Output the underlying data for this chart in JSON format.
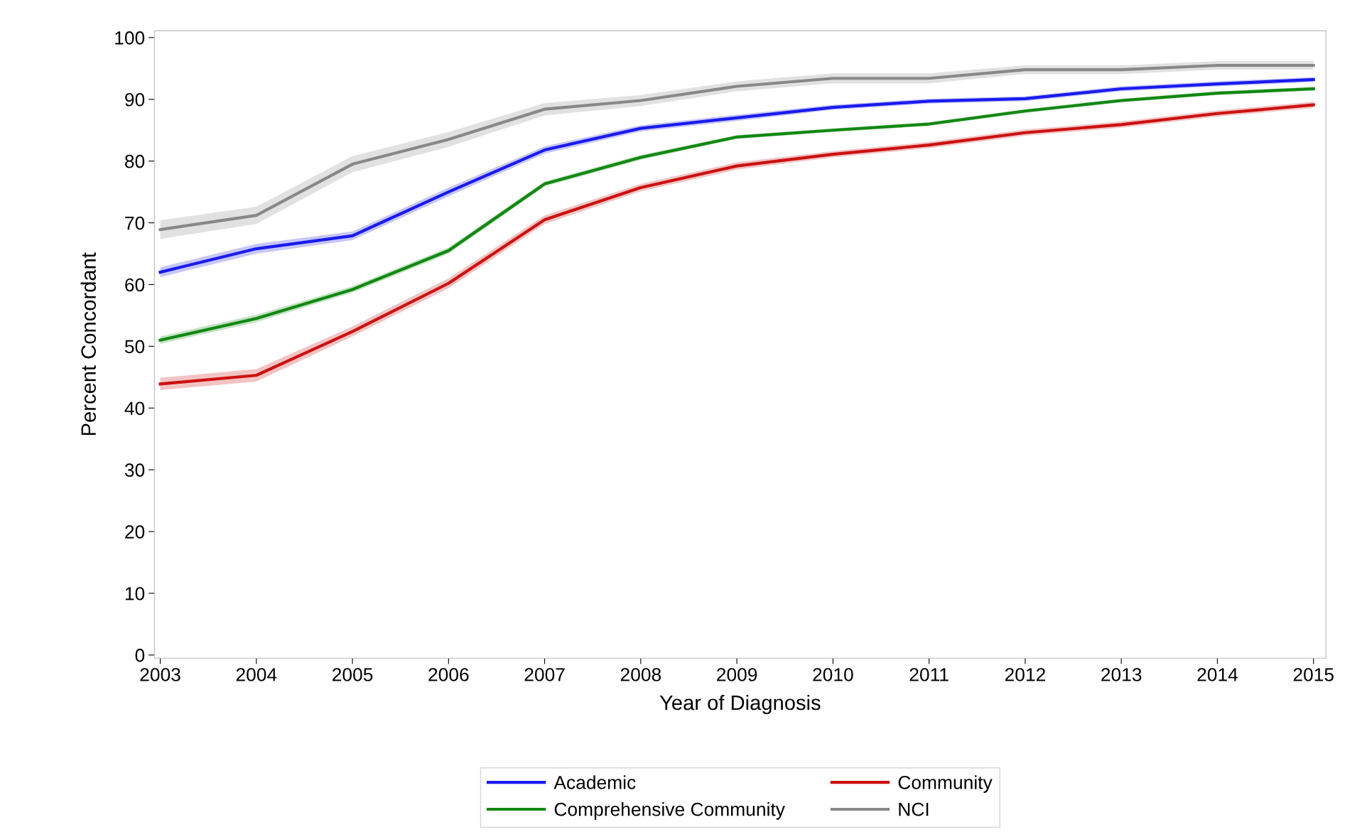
{
  "chart_data": {
    "type": "line",
    "xlabel": "Year of Diagnosis",
    "ylabel": "Percent Concordant",
    "x": [
      2003,
      2004,
      2005,
      2006,
      2007,
      2008,
      2009,
      2010,
      2011,
      2012,
      2013,
      2014,
      2015
    ],
    "series": [
      {
        "name": "Academic",
        "color": "#1a1aee",
        "values": [
          62.0,
          65.8,
          67.9,
          75.0,
          81.8,
          85.3,
          87.0,
          88.7,
          89.7,
          90.1,
          91.7,
          92.5,
          93.2
        ],
        "lower": [
          61.2,
          65.0,
          67.2,
          74.3,
          81.2,
          84.8,
          86.5,
          88.3,
          89.3,
          89.7,
          91.3,
          92.1,
          92.8
        ],
        "upper": [
          62.8,
          66.6,
          68.6,
          75.7,
          82.4,
          85.8,
          87.5,
          89.1,
          90.1,
          90.5,
          92.1,
          92.9,
          93.6
        ]
      },
      {
        "name": "Comprehensive Community",
        "color": "#118811",
        "values": [
          51.0,
          54.5,
          59.2,
          65.5,
          76.3,
          80.6,
          83.9,
          85.0,
          86.0,
          88.1,
          89.8,
          91.0,
          91.7
        ],
        "lower": [
          50.4,
          53.9,
          58.7,
          65.0,
          75.9,
          80.2,
          83.6,
          84.7,
          85.7,
          87.8,
          89.5,
          90.7,
          91.4
        ],
        "upper": [
          51.6,
          55.1,
          59.7,
          66.0,
          76.7,
          81.0,
          84.2,
          85.3,
          86.3,
          88.4,
          90.1,
          91.3,
          92.0
        ]
      },
      {
        "name": "Community",
        "color": "#cc1111",
        "values": [
          43.9,
          45.3,
          52.4,
          60.2,
          70.5,
          75.7,
          79.2,
          81.1,
          82.6,
          84.6,
          85.9,
          87.7,
          89.1
        ],
        "lower": [
          42.9,
          44.3,
          51.6,
          59.4,
          69.8,
          75.1,
          78.6,
          80.6,
          82.1,
          84.1,
          85.4,
          87.2,
          88.6
        ],
        "upper": [
          44.9,
          46.3,
          53.2,
          61.0,
          71.2,
          76.3,
          79.8,
          81.6,
          83.1,
          85.1,
          86.4,
          88.2,
          89.6
        ]
      },
      {
        "name": "NCI",
        "color": "#888888",
        "values": [
          68.9,
          71.2,
          79.5,
          83.5,
          88.4,
          89.8,
          92.1,
          93.4,
          93.4,
          94.8,
          94.8,
          95.5,
          95.5
        ],
        "lower": [
          67.4,
          69.8,
          78.2,
          82.3,
          87.4,
          88.9,
          91.3,
          92.6,
          92.6,
          94.1,
          94.1,
          94.8,
          94.8
        ],
        "upper": [
          70.4,
          72.6,
          80.8,
          84.7,
          89.4,
          90.7,
          92.9,
          94.2,
          94.2,
          95.5,
          95.5,
          96.2,
          96.2
        ]
      }
    ],
    "xlim": [
      2002.94,
      2015.13
    ],
    "xticks": [
      2003,
      2004,
      2005,
      2006,
      2007,
      2008,
      2009,
      2010,
      2011,
      2012,
      2013,
      2014,
      2015
    ],
    "ylim": [
      -0.5,
      101.1
    ],
    "yticks": [
      0,
      10,
      20,
      30,
      40,
      50,
      60,
      70,
      80,
      90,
      100
    ],
    "grid": false,
    "legend": "bottom",
    "marker": "none",
    "line_style": "solid"
  }
}
